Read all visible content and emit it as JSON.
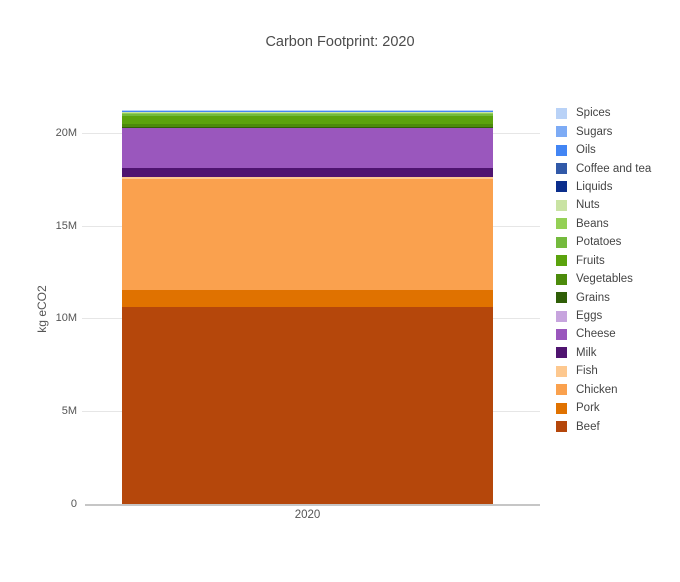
{
  "chart_data": {
    "type": "bar",
    "stacked": true,
    "title": "Carbon Footprint: 2020",
    "xlabel": "",
    "ylabel": "kg eCO2",
    "categories": [
      "2020"
    ],
    "values_unit": "millions of kg eCO2",
    "ylim": [
      0,
      22.3
    ],
    "grid": true,
    "legend_position": "right",
    "yticks": [
      {
        "value": 0,
        "label": "0"
      },
      {
        "value": 5,
        "label": "5M"
      },
      {
        "value": 10,
        "label": "10M"
      },
      {
        "value": 15,
        "label": "15M"
      },
      {
        "value": 20,
        "label": "20M"
      }
    ],
    "stack_note": "legend listed top-to-bottom; stacking order in bar is reversed (Beef at bottom)",
    "series": [
      {
        "name": "Spices",
        "color": "#b9d2f7",
        "value": 0.01
      },
      {
        "name": "Sugars",
        "color": "#7dabf5",
        "value": 0.015
      },
      {
        "name": "Oils",
        "color": "#4285f4",
        "value": 0.015
      },
      {
        "name": "Coffee and tea",
        "color": "#3159a8",
        "value": 0.02
      },
      {
        "name": "Liquids",
        "color": "#0b2e8c",
        "value": 0.02
      },
      {
        "name": "Nuts",
        "color": "#c9e3a3",
        "value": 0.08
      },
      {
        "name": "Beans",
        "color": "#94d055",
        "value": 0.06
      },
      {
        "name": "Potatoes",
        "color": "#74ba3d",
        "value": 0.09
      },
      {
        "name": "Fruits",
        "color": "#5ba30d",
        "value": 0.43
      },
      {
        "name": "Vegetables",
        "color": "#4c8b0b",
        "value": 0.15
      },
      {
        "name": "Grains",
        "color": "#2f5e07",
        "value": 0.03
      },
      {
        "name": "Eggs",
        "color": "#c7a4de",
        "value": 0.03
      },
      {
        "name": "Cheese",
        "color": "#9a57bd",
        "value": 2.19
      },
      {
        "name": "Milk",
        "color": "#4f1470",
        "value": 0.45
      },
      {
        "name": "Fish",
        "color": "#fdc88f",
        "value": 0.14
      },
      {
        "name": "Chicken",
        "color": "#faa14e",
        "value": 5.96
      },
      {
        "name": "Pork",
        "color": "#e07200",
        "value": 0.93
      },
      {
        "name": "Beef",
        "color": "#b5470b",
        "value": 10.6
      }
    ]
  }
}
